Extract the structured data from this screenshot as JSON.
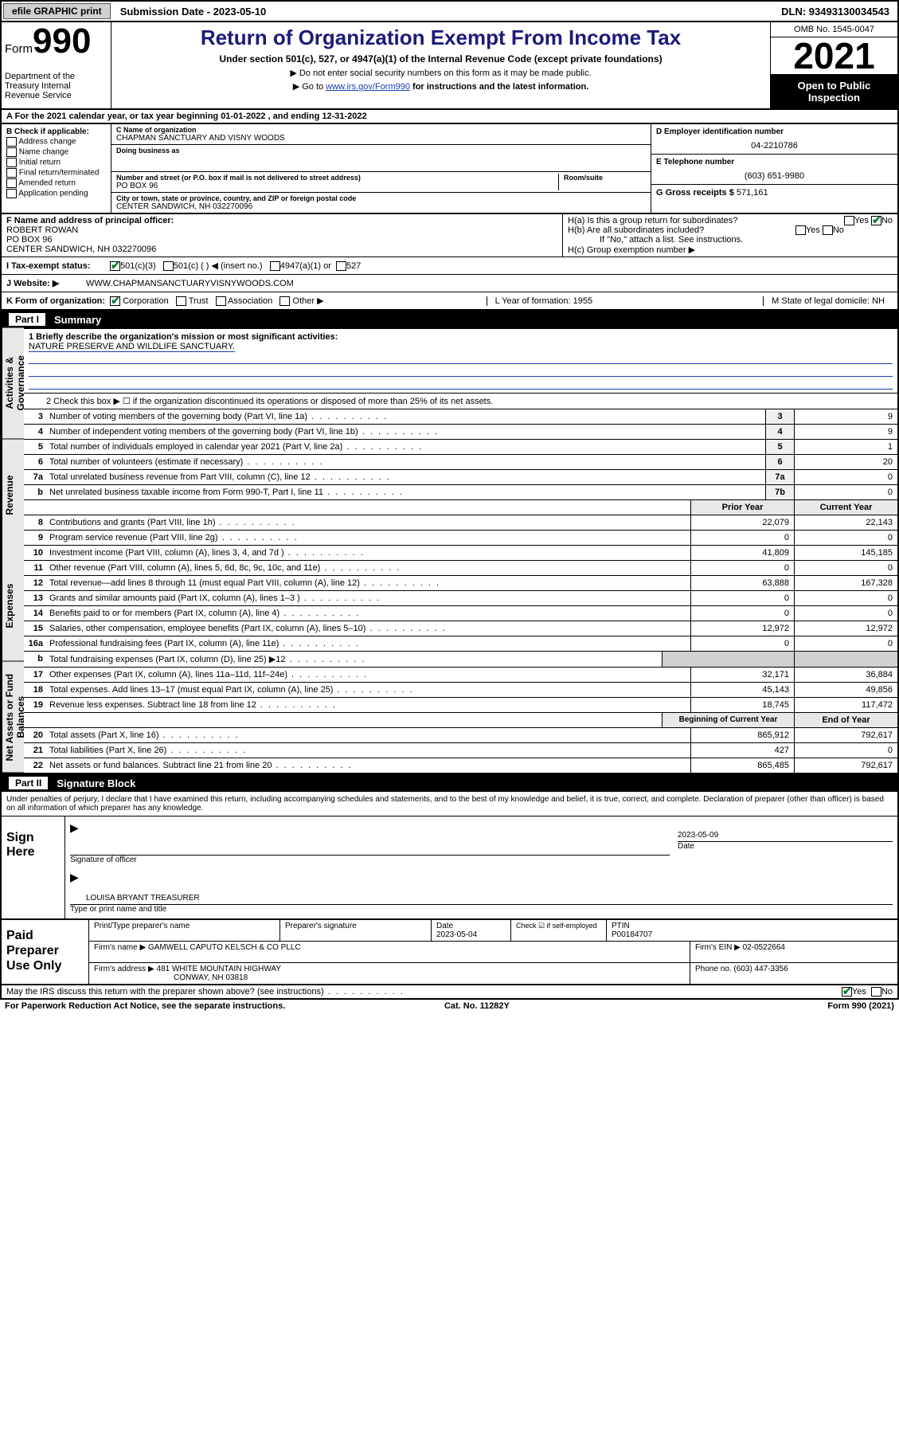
{
  "topbar": {
    "efile_btn": "efile GRAPHIC print",
    "submission_label": "Submission Date - 2023-05-10",
    "dln": "DLN: 93493130034543"
  },
  "header": {
    "form_label": "Form",
    "form_number": "990",
    "dept": "Department of the Treasury Internal Revenue Service",
    "title": "Return of Organization Exempt From Income Tax",
    "subtitle": "Under section 501(c), 527, or 4947(a)(1) of the Internal Revenue Code (except private foundations)",
    "note1": "▶ Do not enter social security numbers on this form as it may be made public.",
    "note2_pre": "▶ Go to ",
    "note2_link": "www.irs.gov/Form990",
    "note2_post": " for instructions and the latest information.",
    "omb": "OMB No. 1545-0047",
    "year": "2021",
    "inspect": "Open to Public Inspection"
  },
  "line_a": "A For the 2021 calendar year, or tax year beginning 01-01-2022   , and ending 12-31-2022",
  "col_b": {
    "hdr": "B Check if applicable:",
    "items": [
      "Address change",
      "Name change",
      "Initial return",
      "Final return/terminated",
      "Amended return",
      "Application pending"
    ]
  },
  "col_c": {
    "name_lbl": "C Name of organization",
    "name": "CHAPMAN SANCTUARY AND VISNY WOODS",
    "dba_lbl": "Doing business as",
    "addr_lbl": "Number and street (or P.O. box if mail is not delivered to street address)",
    "room_lbl": "Room/suite",
    "addr": "PO BOX 96",
    "city_lbl": "City or town, state or province, country, and ZIP or foreign postal code",
    "city": "CENTER SANDWICH, NH  032270096"
  },
  "col_d": {
    "ein_lbl": "D Employer identification number",
    "ein": "04-2210786",
    "tel_lbl": "E Telephone number",
    "tel": "(603) 651-9980",
    "gross_lbl": "G Gross receipts $",
    "gross": "571,161"
  },
  "row_f": {
    "lbl": "F  Name and address of principal officer:",
    "name": "ROBERT ROWAN",
    "addr1": "PO BOX 96",
    "addr2": "CENTER SANDWICH, NH  032270096"
  },
  "row_h": {
    "ha": "H(a)  Is this a group return for subordinates?",
    "hb": "H(b)  Are all subordinates included?",
    "hb_note": "If \"No,\" attach a list. See instructions.",
    "hc": "H(c)  Group exemption number ▶"
  },
  "row_i": {
    "lbl": "I    Tax-exempt status:",
    "opts": [
      "501(c)(3)",
      "501(c) (   ) ◀ (insert no.)",
      "4947(a)(1) or",
      "527"
    ]
  },
  "row_j": {
    "lbl": "J   Website: ▶",
    "val": "WWW.CHAPMANSANCTUARYVISNYWOODS.COM"
  },
  "row_k": {
    "lbl": "K Form of organization:",
    "opts": [
      "Corporation",
      "Trust",
      "Association",
      "Other ▶"
    ],
    "l": "L Year of formation: 1955",
    "m": "M State of legal domicile: NH"
  },
  "part1": {
    "num": "Part I",
    "title": "Summary"
  },
  "mission": {
    "lbl": "1   Briefly describe the organization's mission or most significant activities:",
    "text": "NATURE PRESERVE AND WILDLIFE SANCTUARY."
  },
  "line2": "2   Check this box ▶ ☐  if the organization discontinued its operations or disposed of more than 25% of its net assets.",
  "rows_gov": [
    {
      "n": "3",
      "t": "Number of voting members of the governing body (Part VI, line 1a)",
      "box": "3",
      "v": "9"
    },
    {
      "n": "4",
      "t": "Number of independent voting members of the governing body (Part VI, line 1b)",
      "box": "4",
      "v": "9"
    },
    {
      "n": "5",
      "t": "Total number of individuals employed in calendar year 2021 (Part V, line 2a)",
      "box": "5",
      "v": "1"
    },
    {
      "n": "6",
      "t": "Total number of volunteers (estimate if necessary)",
      "box": "6",
      "v": "20"
    },
    {
      "n": "7a",
      "t": "Total unrelated business revenue from Part VIII, column (C), line 12",
      "box": "7a",
      "v": "0"
    },
    {
      "n": "b",
      "t": "Net unrelated business taxable income from Form 990-T, Part I, line 11",
      "box": "7b",
      "v": "0"
    }
  ],
  "col_hdrs": {
    "py": "Prior Year",
    "cy": "Current Year"
  },
  "rows_rev": [
    {
      "n": "8",
      "t": "Contributions and grants (Part VIII, line 1h)",
      "py": "22,079",
      "cy": "22,143"
    },
    {
      "n": "9",
      "t": "Program service revenue (Part VIII, line 2g)",
      "py": "0",
      "cy": "0"
    },
    {
      "n": "10",
      "t": "Investment income (Part VIII, column (A), lines 3, 4, and 7d )",
      "py": "41,809",
      "cy": "145,185"
    },
    {
      "n": "11",
      "t": "Other revenue (Part VIII, column (A), lines 5, 6d, 8c, 9c, 10c, and 11e)",
      "py": "0",
      "cy": "0"
    },
    {
      "n": "12",
      "t": "Total revenue—add lines 8 through 11 (must equal Part VIII, column (A), line 12)",
      "py": "63,888",
      "cy": "167,328"
    }
  ],
  "rows_exp": [
    {
      "n": "13",
      "t": "Grants and similar amounts paid (Part IX, column (A), lines 1–3 )",
      "py": "0",
      "cy": "0"
    },
    {
      "n": "14",
      "t": "Benefits paid to or for members (Part IX, column (A), line 4)",
      "py": "0",
      "cy": "0"
    },
    {
      "n": "15",
      "t": "Salaries, other compensation, employee benefits (Part IX, column (A), lines 5–10)",
      "py": "12,972",
      "cy": "12,972"
    },
    {
      "n": "16a",
      "t": "Professional fundraising fees (Part IX, column (A), line 11e)",
      "py": "0",
      "cy": "0"
    },
    {
      "n": "b",
      "t": "Total fundraising expenses (Part IX, column (D), line 25) ▶12",
      "py": "",
      "cy": "",
      "grey": true
    },
    {
      "n": "17",
      "t": "Other expenses (Part IX, column (A), lines 11a–11d, 11f–24e)",
      "py": "32,171",
      "cy": "36,884"
    },
    {
      "n": "18",
      "t": "Total expenses. Add lines 13–17 (must equal Part IX, column (A), line 25)",
      "py": "45,143",
      "cy": "49,856"
    },
    {
      "n": "19",
      "t": "Revenue less expenses. Subtract line 18 from line 12",
      "py": "18,745",
      "cy": "117,472"
    }
  ],
  "col_hdrs2": {
    "py": "Beginning of Current Year",
    "cy": "End of Year"
  },
  "rows_net": [
    {
      "n": "20",
      "t": "Total assets (Part X, line 16)",
      "py": "865,912",
      "cy": "792,617"
    },
    {
      "n": "21",
      "t": "Total liabilities (Part X, line 26)",
      "py": "427",
      "cy": "0"
    },
    {
      "n": "22",
      "t": "Net assets or fund balances. Subtract line 21 from line 20",
      "py": "865,485",
      "cy": "792,617"
    }
  ],
  "part2": {
    "num": "Part II",
    "title": "Signature Block"
  },
  "sig_text": "Under penalties of perjury, I declare that I have examined this return, including accompanying schedules and statements, and to the best of my knowledge and belief, it is true, correct, and complete. Declaration of preparer (other than officer) is based on all information of which preparer has any knowledge.",
  "sign": {
    "here": "Sign Here",
    "date": "2023-05-09",
    "sig_of": "Signature of officer",
    "date_lbl": "Date",
    "name": "LOUISA BRYANT TREASURER",
    "type_lbl": "Type or print name and title"
  },
  "paid": {
    "title": "Paid Preparer Use Only",
    "h1": "Print/Type preparer's name",
    "h2": "Preparer's signature",
    "h3": "Date",
    "h4": "Check ☑ if self-employed",
    "h5": "PTIN",
    "date": "2023-05-04",
    "ptin": "P00184707",
    "firm_lbl": "Firm's name    ▶",
    "firm": "GAMWELL CAPUTO KELSCH & CO PLLC",
    "ein_lbl": "Firm's EIN ▶",
    "ein": "02-0522664",
    "addr_lbl": "Firm's address ▶",
    "addr1": "481 WHITE MOUNTAIN HIGHWAY",
    "addr2": "CONWAY, NH  03818",
    "phone_lbl": "Phone no.",
    "phone": "(603) 447-3356"
  },
  "foot": {
    "q": "May the IRS discuss this return with the preparer shown above? (see instructions)",
    "paperwork": "For Paperwork Reduction Act Notice, see the separate instructions.",
    "cat": "Cat. No. 11282Y",
    "form": "Form 990 (2021)"
  },
  "vtabs": [
    "Activities & Governance",
    "Revenue",
    "Expenses",
    "Net Assets or Fund Balances"
  ]
}
